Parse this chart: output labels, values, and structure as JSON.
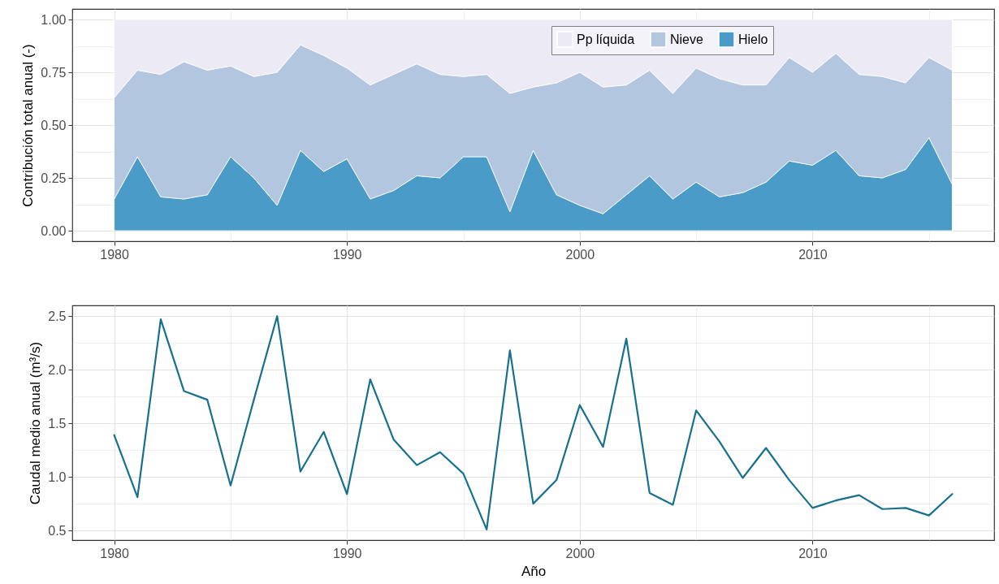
{
  "chart_data": [
    {
      "type": "area",
      "stacked": true,
      "ylabel": "Contribución total anual (-)",
      "legend": "top",
      "grid": true,
      "x": [
        1980,
        1981,
        1982,
        1983,
        1984,
        1985,
        1986,
        1987,
        1988,
        1989,
        1990,
        1991,
        1992,
        1993,
        1994,
        1995,
        1996,
        1997,
        1998,
        1999,
        2000,
        2001,
        2002,
        2003,
        2004,
        2005,
        2006,
        2007,
        2008,
        2009,
        2010,
        2011,
        2012,
        2013,
        2014,
        2015,
        2016
      ],
      "series": [
        {
          "name": "Hielo",
          "color": "#4a9bc7",
          "values": [
            0.15,
            0.35,
            0.16,
            0.15,
            0.17,
            0.35,
            0.25,
            0.12,
            0.38,
            0.28,
            0.34,
            0.15,
            0.19,
            0.26,
            0.25,
            0.35,
            0.35,
            0.09,
            0.38,
            0.17,
            0.12,
            0.08,
            0.17,
            0.26,
            0.15,
            0.23,
            0.16,
            0.18,
            0.23,
            0.33,
            0.31,
            0.38,
            0.26,
            0.25,
            0.29,
            0.44,
            0.22
          ]
        },
        {
          "name": "Nieve",
          "color": "#b3c6e0",
          "values": [
            0.48,
            0.41,
            0.58,
            0.65,
            0.59,
            0.43,
            0.48,
            0.63,
            0.5,
            0.55,
            0.43,
            0.54,
            0.55,
            0.53,
            0.49,
            0.38,
            0.39,
            0.56,
            0.3,
            0.53,
            0.63,
            0.6,
            0.52,
            0.5,
            0.5,
            0.54,
            0.56,
            0.51,
            0.46,
            0.49,
            0.44,
            0.46,
            0.48,
            0.48,
            0.41,
            0.38,
            0.54
          ]
        },
        {
          "name": "Pp líquida",
          "color": "#eceaf4",
          "values": [
            0.37,
            0.24,
            0.26,
            0.2,
            0.24,
            0.22,
            0.27,
            0.25,
            0.12,
            0.17,
            0.23,
            0.31,
            0.26,
            0.21,
            0.26,
            0.27,
            0.26,
            0.35,
            0.32,
            0.3,
            0.25,
            0.32,
            0.31,
            0.24,
            0.35,
            0.23,
            0.28,
            0.31,
            0.31,
            0.18,
            0.25,
            0.16,
            0.26,
            0.27,
            0.3,
            0.18,
            0.24
          ]
        }
      ],
      "xlim": [
        1978.2,
        2017.8
      ],
      "xticks": [
        1980,
        {
          "value": 1985,
          "label": null
        },
        1990,
        {
          "value": 1995,
          "label": null
        },
        2000,
        {
          "value": 2005,
          "label": null
        },
        2010,
        {
          "value": 2015,
          "label": null
        }
      ],
      "ylim": [
        -0.05,
        1.05
      ],
      "yticks": [
        {
          "value": 0,
          "label": "0.00"
        },
        {
          "value": 0.125,
          "label": null
        },
        {
          "value": 0.25,
          "label": "0.25"
        },
        {
          "value": 0.375,
          "label": null
        },
        {
          "value": 0.5,
          "label": "0.50"
        },
        {
          "value": 0.625,
          "label": null
        },
        {
          "value": 0.75,
          "label": "0.75"
        },
        {
          "value": 0.875,
          "label": null
        },
        {
          "value": 1,
          "label": "1.00"
        }
      ]
    },
    {
      "type": "line",
      "xlabel": "Año",
      "ylabel": "Caudal medio anual (m³/s)",
      "grid": true,
      "color": "#16708e",
      "x": [
        1980,
        1981,
        1982,
        1983,
        1984,
        1985,
        1986,
        1987,
        1988,
        1989,
        1990,
        1991,
        1992,
        1993,
        1994,
        1995,
        1996,
        1997,
        1998,
        1999,
        2000,
        2001,
        2002,
        2003,
        2004,
        2005,
        2006,
        2007,
        2008,
        2009,
        2010,
        2011,
        2012,
        2013,
        2014,
        2015,
        2016
      ],
      "values": [
        1.39,
        0.81,
        2.47,
        1.8,
        1.72,
        0.92,
        1.72,
        2.5,
        1.05,
        1.42,
        0.84,
        1.91,
        1.35,
        1.11,
        1.23,
        1.03,
        0.51,
        2.18,
        0.75,
        0.97,
        1.67,
        1.28,
        2.29,
        0.85,
        0.74,
        1.62,
        1.33,
        0.99,
        1.27,
        0.97,
        0.71,
        0.78,
        0.83,
        0.7,
        0.71,
        0.64,
        0.84
      ],
      "xlim": [
        1978.2,
        2017.8
      ],
      "xticks": [
        1980,
        {
          "value": 1985,
          "label": null
        },
        1990,
        {
          "value": 1995,
          "label": null
        },
        2000,
        {
          "value": 2005,
          "label": null
        },
        2010,
        {
          "value": 2015,
          "label": null
        }
      ],
      "ylim": [
        0.41,
        2.6
      ],
      "yticks": [
        0.5,
        {
          "value": 0.75,
          "label": null
        },
        {
          "value": 1,
          "label": "1.0"
        },
        {
          "value": 1.25,
          "label": null
        },
        1.5,
        {
          "value": 1.75,
          "label": null
        },
        {
          "value": 2,
          "label": "2.0"
        },
        {
          "value": 2.25,
          "label": null
        },
        2.5
      ]
    }
  ]
}
